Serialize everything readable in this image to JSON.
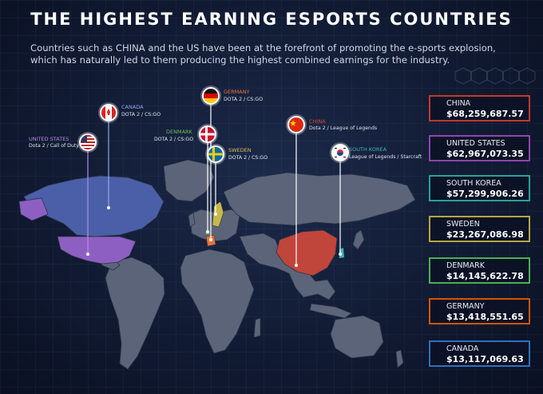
{
  "header": {
    "title": "THE HIGHEST EARNING ESPORTS COUNTRIES",
    "subtitle": "Countries such as CHINA and the US have been at the forefront of promoting the e-sports explosion, which has naturally led to them producing the highest combined earnings for the industry."
  },
  "pins": [
    {
      "country": "UNITED STATES",
      "games": "Dota 2 / Call of Duty",
      "color": "#9b6fd6",
      "flag_icon": "us-flag-icon"
    },
    {
      "country": "CANADA",
      "games": "DOTA 2 / CS:GO",
      "color": "#5f7fd6",
      "flag_icon": "canada-flag-icon"
    },
    {
      "country": "DENMARK",
      "games": "DOTA 2 / CS:GO",
      "color": "#6bbf58",
      "flag_icon": "denmark-flag-icon"
    },
    {
      "country": "GERMANY",
      "games": "DOTA 2 / CS:GO",
      "color": "#e8733a",
      "flag_icon": "germany-flag-icon"
    },
    {
      "country": "SWEDEN",
      "games": "DOTA 2 / CS:GO",
      "color": "#d6c15a",
      "flag_icon": "sweden-flag-icon"
    },
    {
      "country": "CHINA",
      "games": "Dota 2 / League of Legends",
      "color": "#d9453a",
      "flag_icon": "china-flag-icon"
    },
    {
      "country": "SOUTH KOREA",
      "games": "League of Legends / Starcraft",
      "color": "#3fb6b0",
      "flag_icon": "south-korea-flag-icon"
    }
  ],
  "rankings": [
    {
      "name": "CHINA",
      "amount": "$68,259,687.57",
      "color": "#c0392b"
    },
    {
      "name": "UNITED STATES",
      "amount": "$62,967,073.35",
      "color": "#8e44ad"
    },
    {
      "name": "SOUTH KOREA",
      "amount": "$57,299,906.26",
      "color": "#2aa198"
    },
    {
      "name": "SWEDEN",
      "amount": "$23,267,086.98",
      "color": "#b5a642"
    },
    {
      "name": "DENMARK",
      "amount": "$14,145,622.78",
      "color": "#4caf50"
    },
    {
      "name": "GERMANY",
      "amount": "$13,418,551.65",
      "color": "#d35400"
    },
    {
      "name": "CANADA",
      "amount": "$13,117,069.63",
      "color": "#2f6fbf"
    }
  ]
}
